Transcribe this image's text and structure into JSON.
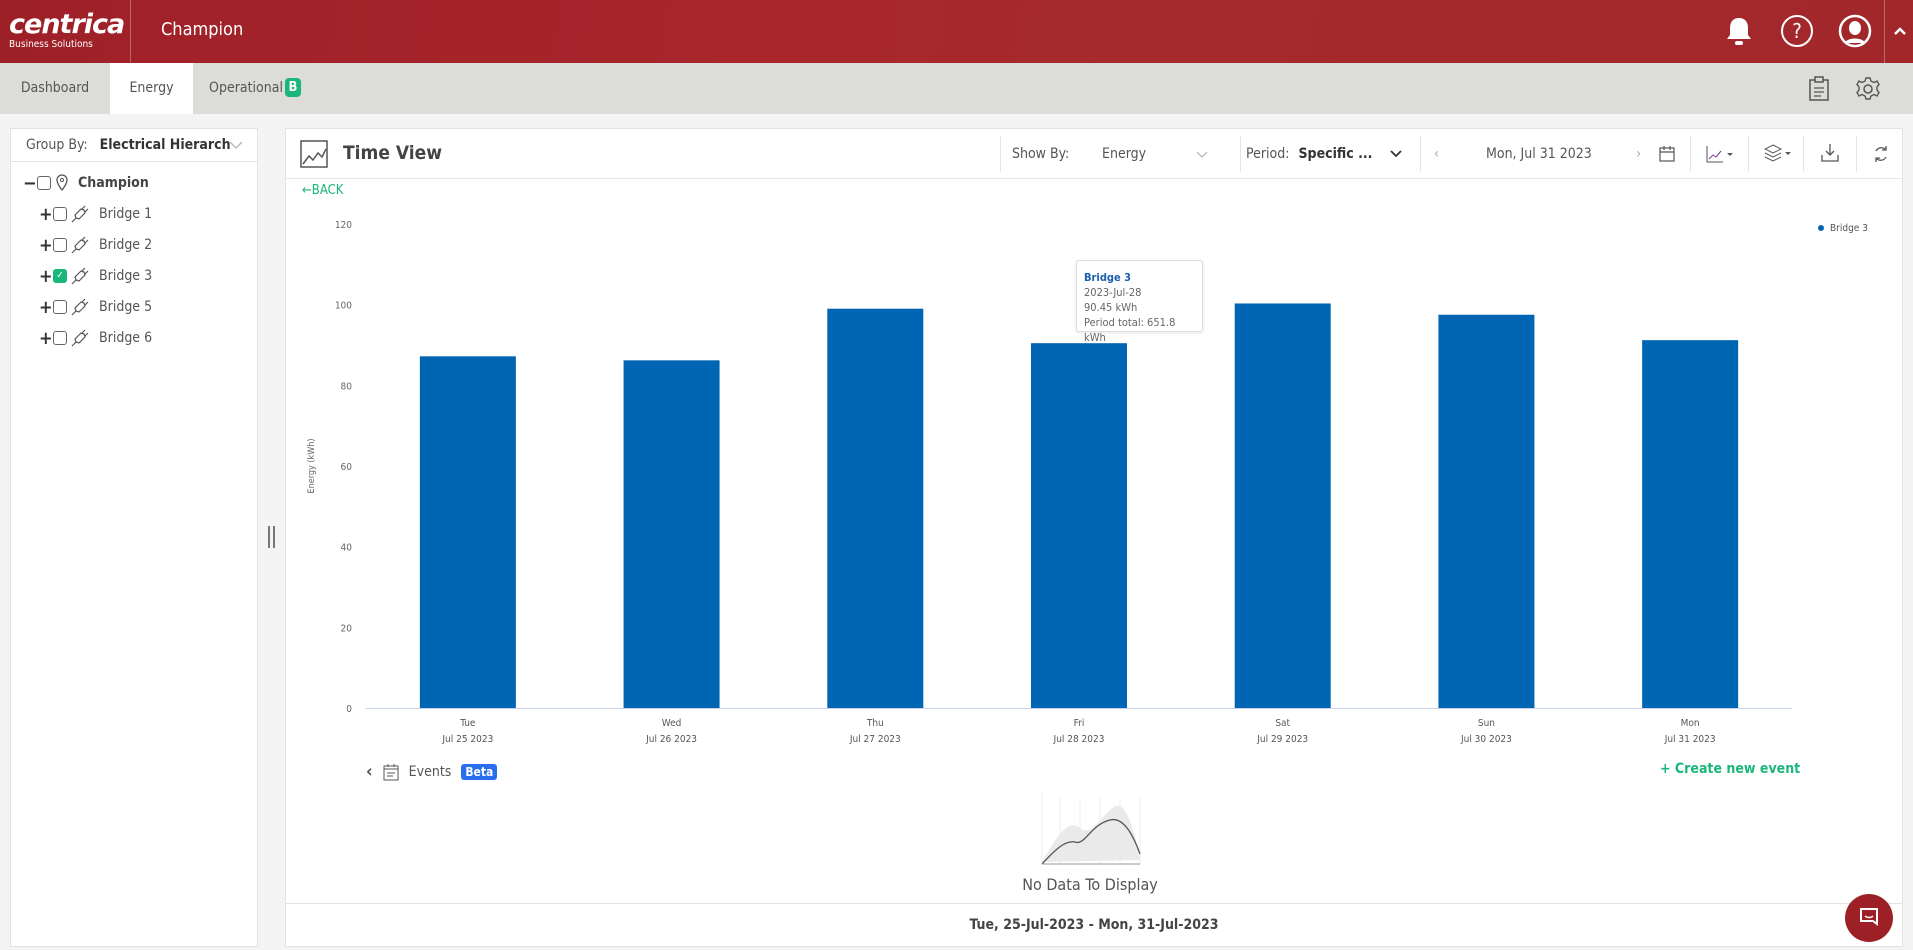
{
  "header": {
    "logo_main": "centrica",
    "logo_sub": "Business Solutions",
    "app_title": "Champion"
  },
  "tabs": [
    {
      "label": "Dashboard"
    },
    {
      "label": "Energy",
      "active": true
    },
    {
      "label": "Operational",
      "badge": "B"
    }
  ],
  "sidebar": {
    "group_by_label": "Group By:",
    "group_by_value": "Electrical Hierarch",
    "root": {
      "label": "Champion",
      "checked": false
    },
    "items": [
      {
        "label": "Bridge 1",
        "checked": false
      },
      {
        "label": "Bridge 2",
        "checked": false
      },
      {
        "label": "Bridge 3",
        "checked": true
      },
      {
        "label": "Bridge 5",
        "checked": false
      },
      {
        "label": "Bridge 6",
        "checked": false
      }
    ]
  },
  "toolbar": {
    "title": "Time View",
    "show_by_label": "Show By:",
    "show_by_value": "Energy",
    "period_label": "Period:",
    "period_value": "Specific ...",
    "date": "Mon, Jul 31 2023",
    "back": "←BACK"
  },
  "colors": {
    "bar": "#0066b3",
    "accent": "#1bb67a",
    "header": "#a2262b",
    "beta": "#2a6ef0"
  },
  "chart_data": {
    "type": "bar",
    "title": "",
    "xlabel": "",
    "ylabel": "Energy (kWh)",
    "ylim": [
      0,
      120
    ],
    "yticks": [
      0,
      20,
      40,
      60,
      80,
      100,
      120
    ],
    "categories": [
      [
        "Tue",
        "Jul 25 2023"
      ],
      [
        "Wed",
        "Jul 26 2023"
      ],
      [
        "Thu",
        "Jul 27 2023"
      ],
      [
        "Fri",
        "Jul 28 2023"
      ],
      [
        "Sat",
        "Jul 29 2023"
      ],
      [
        "Sun",
        "Jul 30 2023"
      ],
      [
        "Mon",
        "Jul 31 2023"
      ]
    ],
    "series": [
      {
        "name": "Bridge 3",
        "values": [
          87.2,
          86.2,
          99.0,
          90.45,
          100.3,
          97.5,
          91.2
        ]
      }
    ],
    "legend": "top-right",
    "grid": false
  },
  "tooltip": {
    "series": "Bridge 3",
    "date": "2023-Jul-28",
    "value": "90.45 kWh",
    "total": "Period total: 651.8 kWh"
  },
  "events": {
    "label": "Events",
    "badge": "Beta",
    "create": "+  Create new event",
    "empty": "No Data To Display"
  },
  "footer": {
    "range": "Tue, 25-Jul-2023 - Mon, 31-Jul-2023"
  }
}
